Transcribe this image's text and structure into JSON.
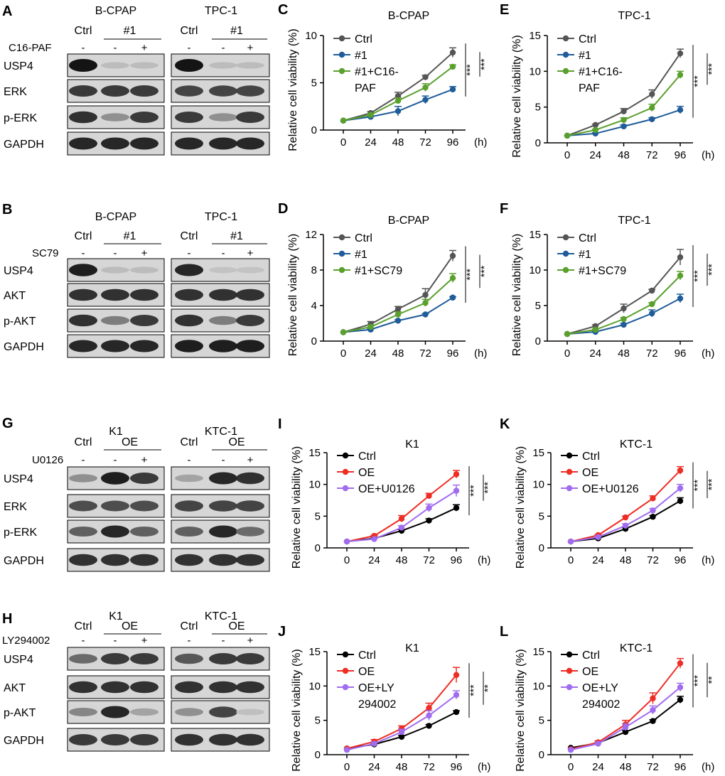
{
  "figure": {
    "blots": [
      {
        "letter": "A",
        "left_group": {
          "cell_line": "B-CPAP",
          "ctrl": "Ctrl",
          "oe": "#1"
        },
        "right_group": {
          "cell_line": "TPC-1",
          "ctrl": "Ctrl",
          "oe": "#1"
        },
        "treatment": "C16-PAF",
        "signs": [
          "-",
          "-",
          "+"
        ],
        "bands": [
          "USP4",
          "ERK",
          "p-ERK",
          "GAPDH"
        ],
        "intensity": {
          "left": [
            [
              1.0,
              0.12,
              0.12
            ],
            [
              0.8,
              0.8,
              0.8
            ],
            [
              0.85,
              0.35,
              0.8
            ],
            [
              0.9,
              0.9,
              0.9
            ]
          ],
          "right": [
            [
              1.0,
              0.12,
              0.12
            ],
            [
              0.75,
              0.75,
              0.75
            ],
            [
              0.8,
              0.35,
              0.8
            ],
            [
              0.9,
              0.9,
              0.9
            ]
          ]
        }
      },
      {
        "letter": "B",
        "left_group": {
          "cell_line": "B-CPAP",
          "ctrl": "Ctrl",
          "oe": "#1"
        },
        "right_group": {
          "cell_line": "TPC-1",
          "ctrl": "Ctrl",
          "oe": "#1"
        },
        "treatment": "SC79",
        "signs": [
          "-",
          "-",
          "+"
        ],
        "bands": [
          "USP4",
          "AKT",
          "p-AKT",
          "GAPDH"
        ],
        "intensity": {
          "left": [
            [
              0.95,
              0.12,
              0.12
            ],
            [
              0.85,
              0.85,
              0.85
            ],
            [
              0.85,
              0.45,
              0.8
            ],
            [
              0.9,
              0.9,
              0.9
            ]
          ],
          "right": [
            [
              0.9,
              0.08,
              0.08
            ],
            [
              0.85,
              0.85,
              0.85
            ],
            [
              0.85,
              0.45,
              0.8
            ],
            [
              0.95,
              0.95,
              0.95
            ]
          ]
        }
      },
      {
        "letter": "G",
        "left_group": {
          "cell_line": "K1",
          "ctrl": "Ctrl",
          "oe": "OE"
        },
        "right_group": {
          "cell_line": "KTC-1",
          "ctrl": "Ctrl",
          "oe": "OE"
        },
        "treatment": "U0126",
        "signs": [
          "-",
          "-",
          "+"
        ],
        "bands": [
          "USP4",
          "ERK",
          "p-ERK",
          "GAPDH"
        ],
        "intensity": {
          "left": [
            [
              0.35,
              0.95,
              0.8
            ],
            [
              0.7,
              0.7,
              0.7
            ],
            [
              0.6,
              0.9,
              0.6
            ],
            [
              0.85,
              0.85,
              0.85
            ]
          ],
          "right": [
            [
              0.25,
              0.9,
              0.85
            ],
            [
              0.75,
              0.75,
              0.75
            ],
            [
              0.6,
              0.9,
              0.55
            ],
            [
              0.85,
              0.85,
              0.85
            ]
          ]
        }
      },
      {
        "letter": "H",
        "left_group": {
          "cell_line": "K1",
          "ctrl": "Ctrl",
          "oe": "OE"
        },
        "right_group": {
          "cell_line": "KTC-1",
          "ctrl": "Ctrl",
          "oe": "OE"
        },
        "treatment": "LY294002",
        "signs": [
          "-",
          "-",
          "+"
        ],
        "bands": [
          "USP4",
          "AKT",
          "p-AKT",
          "GAPDH"
        ],
        "intensity": {
          "left": [
            [
              0.55,
              0.8,
              0.8
            ],
            [
              0.85,
              0.85,
              0.85
            ],
            [
              0.4,
              0.9,
              0.25
            ],
            [
              0.8,
              0.8,
              0.8
            ]
          ],
          "right": [
            [
              0.65,
              0.8,
              0.8
            ],
            [
              0.85,
              0.85,
              0.85
            ],
            [
              0.35,
              0.75,
              0.1
            ],
            [
              0.85,
              0.85,
              0.85
            ]
          ]
        }
      }
    ],
    "colors": {
      "ctrl_dark": "#555555",
      "ctrl_black": "#000000",
      "blue": "#1f5c99",
      "green": "#5aa02c",
      "red": "#ee2d24",
      "purple": "#a06cf0"
    }
  },
  "chart_data": [
    {
      "panel": "C",
      "type": "line",
      "title": "B-CPAP",
      "ylabel": "Relative cell viability (%)",
      "xlabel": "(h)",
      "x": [
        0,
        24,
        48,
        72,
        96
      ],
      "ylim": [
        0,
        10
      ],
      "yticks": [
        0,
        5,
        10
      ],
      "series": [
        {
          "name": "Ctrl",
          "color": "#555555",
          "values": [
            1,
            1.8,
            3.6,
            5.6,
            8.2
          ],
          "err": [
            0,
            0.15,
            0.4,
            0.2,
            0.5
          ]
        },
        {
          "name": "#1",
          "color": "#1f5c99",
          "values": [
            1,
            1.4,
            2.0,
            3.2,
            4.3
          ],
          "err": [
            0,
            0.1,
            0.5,
            0.4,
            0.3
          ]
        },
        {
          "name": "#1+C16-PAF",
          "color": "#5aa02c",
          "values": [
            1,
            1.6,
            3.1,
            4.5,
            6.7
          ],
          "err": [
            0,
            0.1,
            0.3,
            0.4,
            0.2
          ]
        }
      ],
      "legend": [
        "Ctrl",
        "#1",
        "#1+C16-",
        "PAF"
      ],
      "significance": [
        "***",
        "***"
      ]
    },
    {
      "panel": "E",
      "type": "line",
      "title": "TPC-1",
      "ylabel": "Relative cell viability (%)",
      "xlabel": "(h)",
      "x": [
        0,
        24,
        48,
        72,
        96
      ],
      "ylim": [
        0,
        15
      ],
      "yticks": [
        0,
        5,
        10,
        15
      ],
      "series": [
        {
          "name": "Ctrl",
          "color": "#555555",
          "values": [
            1,
            2.5,
            4.4,
            6.8,
            12.5
          ],
          "err": [
            0,
            0.1,
            0.4,
            0.6,
            0.6
          ]
        },
        {
          "name": "#1",
          "color": "#1f5c99",
          "values": [
            1,
            1.3,
            2.3,
            3.3,
            4.6
          ],
          "err": [
            0,
            0.1,
            0.2,
            0.2,
            0.5
          ]
        },
        {
          "name": "#1+C16-PAF",
          "color": "#5aa02c",
          "values": [
            1,
            1.8,
            3.2,
            4.9,
            9.5
          ],
          "err": [
            0,
            0.1,
            0.3,
            0.5,
            0.5
          ]
        }
      ],
      "legend": [
        "Ctrl",
        "#1",
        "#1+C16-",
        "PAF"
      ],
      "significance": [
        "***",
        "***"
      ]
    },
    {
      "panel": "D",
      "type": "line",
      "title": "B-CPAP",
      "ylabel": "Relative cell viability (%)",
      "xlabel": "(h)",
      "x": [
        0,
        24,
        48,
        72,
        96
      ],
      "ylim": [
        0,
        12
      ],
      "yticks": [
        0,
        4,
        8,
        12
      ],
      "series": [
        {
          "name": "Ctrl",
          "color": "#555555",
          "values": [
            1,
            1.9,
            3.6,
            5.2,
            9.6
          ],
          "err": [
            0,
            0.3,
            0.3,
            0.7,
            0.6
          ]
        },
        {
          "name": "#1",
          "color": "#1f5c99",
          "values": [
            1,
            1.3,
            2.3,
            3.0,
            4.9
          ],
          "err": [
            0,
            0.1,
            0.1,
            0.1,
            0.1
          ]
        },
        {
          "name": "#1+SC79",
          "color": "#5aa02c",
          "values": [
            1,
            1.6,
            3.0,
            4.3,
            7.1
          ],
          "err": [
            0,
            0.2,
            0.3,
            0.4,
            0.5
          ]
        }
      ],
      "legend": [
        "Ctrl",
        "#1",
        "#1+SC79"
      ],
      "significance": [
        "***",
        "***"
      ]
    },
    {
      "panel": "F",
      "type": "line",
      "title": "TPC-1",
      "ylabel": "Relative cell viability (%)",
      "xlabel": "(h)",
      "x": [
        0,
        24,
        48,
        72,
        96
      ],
      "ylim": [
        0,
        15
      ],
      "yticks": [
        0,
        5,
        10,
        15
      ],
      "series": [
        {
          "name": "Ctrl",
          "color": "#555555",
          "values": [
            1,
            2.1,
            4.6,
            7.1,
            11.8
          ],
          "err": [
            0,
            0.2,
            0.6,
            0.2,
            1.1
          ]
        },
        {
          "name": "#1",
          "color": "#1f5c99",
          "values": [
            1,
            1.3,
            2.3,
            3.9,
            6.0
          ],
          "err": [
            0,
            0.1,
            0.2,
            0.5,
            0.6
          ]
        },
        {
          "name": "#1+SC79",
          "color": "#5aa02c",
          "values": [
            1,
            1.6,
            3.1,
            5.2,
            9.2
          ],
          "err": [
            0,
            0.1,
            0.2,
            0.2,
            0.6
          ]
        }
      ],
      "legend": [
        "Ctrl",
        "#1",
        "#1+SC79"
      ],
      "significance": [
        "***",
        "***"
      ]
    },
    {
      "panel": "I",
      "type": "line",
      "title": "K1",
      "ylabel": "Relative cell viability (%)",
      "xlabel": "(h)",
      "x": [
        0,
        24,
        48,
        72,
        96
      ],
      "ylim": [
        0,
        15
      ],
      "yticks": [
        0,
        5,
        10,
        15
      ],
      "series": [
        {
          "name": "Ctrl",
          "color": "#000000",
          "values": [
            1,
            1.5,
            2.7,
            4.3,
            6.3
          ],
          "err": [
            0,
            0.1,
            0.2,
            0.3,
            0.5
          ]
        },
        {
          "name": "OE",
          "color": "#ee2d24",
          "values": [
            1,
            1.9,
            4.6,
            8.2,
            11.6
          ],
          "err": [
            0,
            0.1,
            0.5,
            0.4,
            0.6
          ]
        },
        {
          "name": "OE+U0126",
          "color": "#a06cf0",
          "values": [
            1,
            1.4,
            3.2,
            6.3,
            9.0
          ],
          "err": [
            0,
            0.1,
            0.3,
            0.6,
            0.9
          ]
        }
      ],
      "legend": [
        "Ctrl",
        "OE",
        "OE+U0126"
      ],
      "significance": [
        "***",
        "***"
      ]
    },
    {
      "panel": "K",
      "type": "line",
      "title": "KTC-1",
      "ylabel": "Relative cell viability (%)",
      "xlabel": "(h)",
      "x": [
        0,
        24,
        48,
        72,
        96
      ],
      "ylim": [
        0,
        15
      ],
      "yticks": [
        0,
        5,
        10,
        15
      ],
      "series": [
        {
          "name": "Ctrl",
          "color": "#000000",
          "values": [
            1,
            1.5,
            3.0,
            4.9,
            7.4
          ],
          "err": [
            0,
            0.1,
            0.2,
            0.2,
            0.5
          ]
        },
        {
          "name": "OE",
          "color": "#ee2d24",
          "values": [
            1,
            2.0,
            4.8,
            7.8,
            12.2
          ],
          "err": [
            0,
            0.1,
            0.2,
            0.4,
            0.6
          ]
        },
        {
          "name": "OE+U0126",
          "color": "#a06cf0",
          "values": [
            1,
            1.7,
            3.5,
            5.9,
            9.4
          ],
          "err": [
            0,
            0.1,
            0.3,
            0.3,
            0.6
          ]
        }
      ],
      "legend": [
        "Ctrl",
        "OE",
        "OE+U0126"
      ],
      "significance": [
        "***",
        "***"
      ]
    },
    {
      "panel": "J",
      "type": "line",
      "title": "K1",
      "ylabel": "Relative cell viability (%)",
      "xlabel": "(h)",
      "x": [
        0,
        24,
        48,
        72,
        96
      ],
      "ylim": [
        0,
        15
      ],
      "yticks": [
        0,
        5,
        10,
        15
      ],
      "series": [
        {
          "name": "Ctrl",
          "color": "#000000",
          "values": [
            0.9,
            1.5,
            2.6,
            4.2,
            6.2
          ],
          "err": [
            0,
            0.1,
            0.2,
            0.2,
            0.2
          ]
        },
        {
          "name": "OE",
          "color": "#ee2d24",
          "values": [
            0.9,
            1.9,
            3.8,
            6.8,
            11.6
          ],
          "err": [
            0,
            0.3,
            0.4,
            0.7,
            1.1
          ]
        },
        {
          "name": "OE+LY 294002",
          "color": "#a06cf0",
          "values": [
            0.7,
            1.6,
            3.3,
            5.7,
            8.7
          ],
          "err": [
            0,
            0.2,
            0.4,
            0.7,
            0.6
          ]
        }
      ],
      "legend": [
        "Ctrl",
        "OE",
        "OE+LY",
        "294002"
      ],
      "significance": [
        "***",
        "**"
      ]
    },
    {
      "panel": "L",
      "type": "line",
      "title": "KTC-1",
      "ylabel": "Relative cell viability (%)",
      "xlabel": "(h)",
      "x": [
        0,
        24,
        48,
        72,
        96
      ],
      "ylim": [
        0,
        15
      ],
      "yticks": [
        0,
        5,
        10,
        15
      ],
      "series": [
        {
          "name": "Ctrl",
          "color": "#000000",
          "values": [
            1,
            1.7,
            3.3,
            4.9,
            8.0
          ],
          "err": [
            0,
            0.3,
            0.2,
            0.2,
            0.5
          ]
        },
        {
          "name": "OE",
          "color": "#ee2d24",
          "values": [
            0.8,
            1.8,
            4.4,
            8.2,
            13.3
          ],
          "err": [
            0,
            0.2,
            0.6,
            0.8,
            0.7
          ]
        },
        {
          "name": "OE+LY 294002",
          "color": "#a06cf0",
          "values": [
            0.7,
            1.6,
            4.0,
            6.5,
            9.8
          ],
          "err": [
            0,
            0.2,
            0.5,
            0.6,
            0.6
          ]
        }
      ],
      "legend": [
        "Ctrl",
        "OE",
        "OE+LY",
        "294002"
      ],
      "significance": [
        "***",
        "**"
      ]
    }
  ]
}
